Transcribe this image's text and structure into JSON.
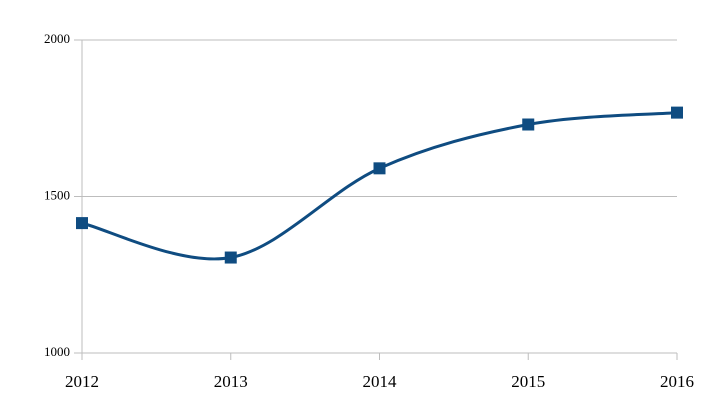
{
  "chart_data": {
    "type": "line",
    "categories": [
      "2012",
      "2013",
      "2014",
      "2015",
      "2016"
    ],
    "values": [
      1415,
      1305,
      1590,
      1730,
      1768
    ],
    "color": "#0f4c81",
    "ylim": [
      1000,
      2000
    ],
    "yticks": [
      1000,
      1500,
      2000
    ],
    "grid": true
  }
}
